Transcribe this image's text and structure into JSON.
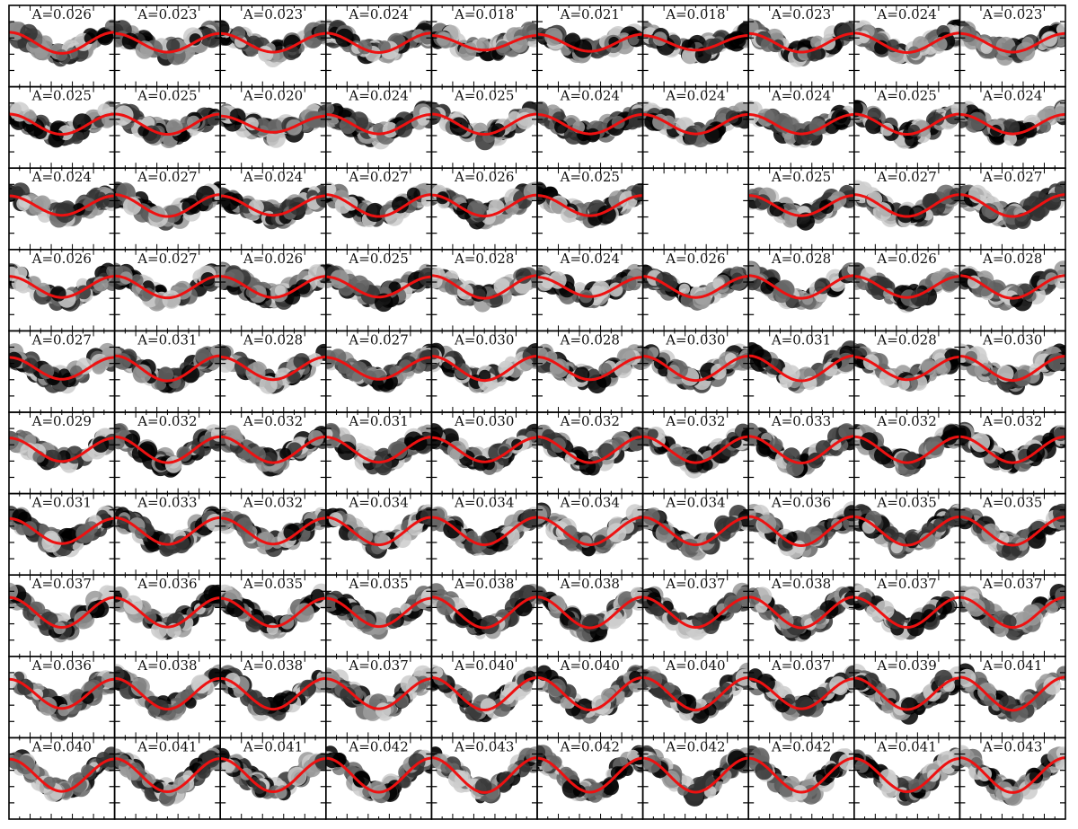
{
  "chart_data": {
    "type": "scatter",
    "description_grid": {
      "rows": 10,
      "cols": 10
    },
    "fit_color": "#ee1111",
    "point_colors": [
      "#000000",
      "#333333",
      "#666666",
      "#999999",
      "#cccccc"
    ],
    "panels": [
      {
        "label": "A=0.026",
        "amplitude": 0.026
      },
      {
        "label": "A=0.023",
        "amplitude": 0.023
      },
      {
        "label": "A=0.023",
        "amplitude": 0.023
      },
      {
        "label": "A=0.024",
        "amplitude": 0.024
      },
      {
        "label": "A=0.018",
        "amplitude": 0.018
      },
      {
        "label": "A=0.021",
        "amplitude": 0.021
      },
      {
        "label": "A=0.018",
        "amplitude": 0.018
      },
      {
        "label": "A=0.023",
        "amplitude": 0.023
      },
      {
        "label": "A=0.024",
        "amplitude": 0.024
      },
      {
        "label": "A=0.023",
        "amplitude": 0.023
      },
      {
        "label": "A=0.025",
        "amplitude": 0.025
      },
      {
        "label": "A=0.025",
        "amplitude": 0.025
      },
      {
        "label": "A=0.020",
        "amplitude": 0.02
      },
      {
        "label": "A=0.024",
        "amplitude": 0.024
      },
      {
        "label": "A=0.025",
        "amplitude": 0.025
      },
      {
        "label": "A=0.024",
        "amplitude": 0.024
      },
      {
        "label": "A=0.024",
        "amplitude": 0.024
      },
      {
        "label": "A=0.024",
        "amplitude": 0.024
      },
      {
        "label": "A=0.025",
        "amplitude": 0.025
      },
      {
        "label": "A=0.024",
        "amplitude": 0.024
      },
      {
        "label": "A=0.024",
        "amplitude": 0.024
      },
      {
        "label": "A=0.027",
        "amplitude": 0.027
      },
      {
        "label": "A=0.024",
        "amplitude": 0.024
      },
      {
        "label": "A=0.027",
        "amplitude": 0.027
      },
      {
        "label": "A=0.026",
        "amplitude": 0.026
      },
      {
        "label": "A=0.025",
        "amplitude": 0.025
      },
      {
        "label": "",
        "amplitude": null,
        "empty": true
      },
      {
        "label": "A=0.025",
        "amplitude": 0.025
      },
      {
        "label": "A=0.027",
        "amplitude": 0.027
      },
      {
        "label": "A=0.027",
        "amplitude": 0.027
      },
      {
        "label": "A=0.026",
        "amplitude": 0.026
      },
      {
        "label": "A=0.027",
        "amplitude": 0.027
      },
      {
        "label": "A=0.026",
        "amplitude": 0.026
      },
      {
        "label": "A=0.025",
        "amplitude": 0.025
      },
      {
        "label": "A=0.028",
        "amplitude": 0.028
      },
      {
        "label": "A=0.024",
        "amplitude": 0.024
      },
      {
        "label": "A=0.026",
        "amplitude": 0.026
      },
      {
        "label": "A=0.028",
        "amplitude": 0.028
      },
      {
        "label": "A=0.026",
        "amplitude": 0.026
      },
      {
        "label": "A=0.028",
        "amplitude": 0.028
      },
      {
        "label": "A=0.027",
        "amplitude": 0.027
      },
      {
        "label": "A=0.031",
        "amplitude": 0.031
      },
      {
        "label": "A=0.028",
        "amplitude": 0.028
      },
      {
        "label": "A=0.027",
        "amplitude": 0.027
      },
      {
        "label": "A=0.030",
        "amplitude": 0.03
      },
      {
        "label": "A=0.028",
        "amplitude": 0.028
      },
      {
        "label": "A=0.030",
        "amplitude": 0.03
      },
      {
        "label": "A=0.031",
        "amplitude": 0.031
      },
      {
        "label": "A=0.028",
        "amplitude": 0.028
      },
      {
        "label": "A=0.030",
        "amplitude": 0.03
      },
      {
        "label": "A=0.029",
        "amplitude": 0.029
      },
      {
        "label": "A=0.032",
        "amplitude": 0.032
      },
      {
        "label": "A=0.032",
        "amplitude": 0.032
      },
      {
        "label": "A=0.031",
        "amplitude": 0.031
      },
      {
        "label": "A=0.030",
        "amplitude": 0.03
      },
      {
        "label": "A=0.032",
        "amplitude": 0.032
      },
      {
        "label": "A=0.032",
        "amplitude": 0.032
      },
      {
        "label": "A=0.033",
        "amplitude": 0.033
      },
      {
        "label": "A=0.032",
        "amplitude": 0.032
      },
      {
        "label": "A=0.032",
        "amplitude": 0.032
      },
      {
        "label": "A=0.031",
        "amplitude": 0.031
      },
      {
        "label": "A=0.033",
        "amplitude": 0.033
      },
      {
        "label": "A=0.032",
        "amplitude": 0.032
      },
      {
        "label": "A=0.034",
        "amplitude": 0.034
      },
      {
        "label": "A=0.034",
        "amplitude": 0.034
      },
      {
        "label": "A=0.034",
        "amplitude": 0.034
      },
      {
        "label": "A=0.034",
        "amplitude": 0.034
      },
      {
        "label": "A=0.036",
        "amplitude": 0.036
      },
      {
        "label": "A=0.035",
        "amplitude": 0.035
      },
      {
        "label": "A=0.035",
        "amplitude": 0.035
      },
      {
        "label": "A=0.037",
        "amplitude": 0.037
      },
      {
        "label": "A=0.036",
        "amplitude": 0.036
      },
      {
        "label": "A=0.035",
        "amplitude": 0.035
      },
      {
        "label": "A=0.035",
        "amplitude": 0.035
      },
      {
        "label": "A=0.038",
        "amplitude": 0.038
      },
      {
        "label": "A=0.038",
        "amplitude": 0.038
      },
      {
        "label": "A=0.037",
        "amplitude": 0.037
      },
      {
        "label": "A=0.038",
        "amplitude": 0.038
      },
      {
        "label": "A=0.037",
        "amplitude": 0.037
      },
      {
        "label": "A=0.037",
        "amplitude": 0.037
      },
      {
        "label": "A=0.036",
        "amplitude": 0.036
      },
      {
        "label": "A=0.038",
        "amplitude": 0.038
      },
      {
        "label": "A=0.038",
        "amplitude": 0.038
      },
      {
        "label": "A=0.037",
        "amplitude": 0.037
      },
      {
        "label": "A=0.040",
        "amplitude": 0.04
      },
      {
        "label": "A=0.040",
        "amplitude": 0.04
      },
      {
        "label": "A=0.040",
        "amplitude": 0.04
      },
      {
        "label": "A=0.037",
        "amplitude": 0.037
      },
      {
        "label": "A=0.039",
        "amplitude": 0.039
      },
      {
        "label": "A=0.041",
        "amplitude": 0.041
      },
      {
        "label": "A=0.040",
        "amplitude": 0.04
      },
      {
        "label": "A=0.041",
        "amplitude": 0.041
      },
      {
        "label": "A=0.041",
        "amplitude": 0.041
      },
      {
        "label": "A=0.042",
        "amplitude": 0.042
      },
      {
        "label": "A=0.043",
        "amplitude": 0.043
      },
      {
        "label": "A=0.042",
        "amplitude": 0.042
      },
      {
        "label": "A=0.042",
        "amplitude": 0.042
      },
      {
        "label": "A=0.042",
        "amplitude": 0.042
      },
      {
        "label": "A=0.041",
        "amplitude": 0.041
      },
      {
        "label": "A=0.043",
        "amplitude": 0.043
      }
    ],
    "grid": false,
    "title": "",
    "xlabel": "",
    "ylabel": ""
  }
}
